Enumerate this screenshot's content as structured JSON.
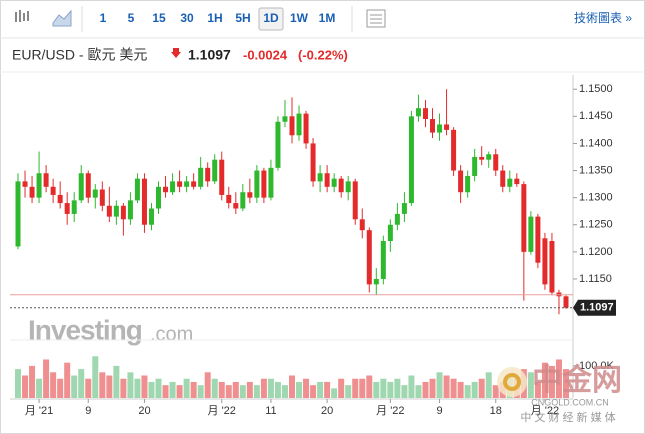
{
  "toolbar": {
    "intervals": [
      "1",
      "5",
      "15",
      "30",
      "1H",
      "5H",
      "1D",
      "1W",
      "1M"
    ],
    "selected": 6,
    "link": "技術圖表 »"
  },
  "header": {
    "symbol": "EUR/USD - 歐元 美元",
    "price": "1.1097",
    "change": "-0.0024",
    "change_pct": "(-0.22%)"
  },
  "watermarks": {
    "brand": "Investing",
    "brand_suffix": ".com",
    "cn_name": "中金网",
    "cn_domain": "CNGOLD.COM.CN",
    "cn_slogan": "中 文 财 经 新 媒 体"
  },
  "chart_data": {
    "type": "candlestick",
    "up_color": "#2eb82e",
    "down_color": "#e32b2b",
    "volume_up_color": "#9fd8b0",
    "volume_down_color": "#f08f8f",
    "categories": [
      null,
      null,
      null,
      "月 '21",
      null,
      null,
      null,
      null,
      null,
      null,
      "9",
      null,
      null,
      null,
      null,
      null,
      null,
      null,
      "20",
      null,
      null,
      null,
      null,
      null,
      null,
      null,
      null,
      null,
      null,
      "月 '22",
      null,
      null,
      null,
      null,
      null,
      null,
      "11",
      null,
      null,
      null,
      null,
      null,
      null,
      null,
      "20",
      null,
      null,
      null,
      null,
      null,
      null,
      null,
      null,
      "月 '22",
      null,
      null,
      null,
      null,
      null,
      null,
      "9",
      null,
      null,
      null,
      null,
      null,
      null,
      null,
      "18",
      null,
      null,
      null,
      null,
      null,
      null,
      "月 '22",
      null,
      null,
      null
    ],
    "open": [
      1.121,
      1.133,
      1.132,
      1.13,
      1.1345,
      1.132,
      1.1305,
      1.129,
      1.127,
      1.1295,
      1.1345,
      1.13,
      1.1315,
      1.1285,
      1.1265,
      1.1285,
      1.126,
      1.1295,
      1.1335,
      1.125,
      1.128,
      1.132,
      1.131,
      1.133,
      1.132,
      1.133,
      1.132,
      1.1355,
      1.133,
      1.137,
      1.1305,
      1.129,
      1.128,
      1.131,
      1.13,
      1.135,
      1.13,
      1.1355,
      1.144,
      1.145,
      1.1415,
      1.1455,
      1.14,
      1.133,
      1.1345,
      1.132,
      1.1335,
      1.131,
      1.133,
      1.126,
      1.124,
      1.114,
      1.115,
      1.122,
      1.125,
      1.127,
      1.129,
      1.145,
      1.1465,
      1.1445,
      1.142,
      1.1435,
      1.1425,
      1.135,
      1.131,
      1.134,
      1.1375,
      1.137,
      1.138,
      1.135,
      1.132,
      1.1335,
      1.1325,
      1.12,
      1.1265,
      1.1225,
      1.122,
      1.1125,
      1.1118
    ],
    "high": [
      1.1345,
      1.135,
      1.134,
      1.1385,
      1.136,
      1.1335,
      1.133,
      1.131,
      1.131,
      1.136,
      1.135,
      1.1325,
      1.133,
      1.132,
      1.1295,
      1.129,
      1.131,
      1.1345,
      1.1345,
      1.129,
      1.133,
      1.134,
      1.1345,
      1.135,
      1.134,
      1.1345,
      1.1375,
      1.1365,
      1.138,
      1.1385,
      1.132,
      1.131,
      1.1325,
      1.1335,
      1.136,
      1.1355,
      1.137,
      1.145,
      1.148,
      1.1485,
      1.147,
      1.146,
      1.141,
      1.136,
      1.136,
      1.1345,
      1.134,
      1.134,
      1.1335,
      1.128,
      1.1245,
      1.117,
      1.123,
      1.126,
      1.129,
      1.131,
      1.146,
      1.149,
      1.148,
      1.1465,
      1.1455,
      1.15,
      1.143,
      1.136,
      1.135,
      1.139,
      1.1395,
      1.1385,
      1.139,
      1.136,
      1.135,
      1.1345,
      1.133,
      1.1275,
      1.127,
      1.1235,
      1.1235,
      1.113,
      1.112
    ],
    "low": [
      1.1205,
      1.13,
      1.129,
      1.129,
      1.131,
      1.129,
      1.128,
      1.125,
      1.1255,
      1.129,
      1.129,
      1.128,
      1.1275,
      1.1255,
      1.125,
      1.123,
      1.125,
      1.129,
      1.1235,
      1.124,
      1.127,
      1.13,
      1.1305,
      1.131,
      1.131,
      1.1315,
      1.1315,
      1.132,
      1.1325,
      1.1295,
      1.128,
      1.127,
      1.1275,
      1.129,
      1.129,
      1.129,
      1.1295,
      1.135,
      1.143,
      1.14,
      1.1405,
      1.139,
      1.132,
      1.131,
      1.131,
      1.131,
      1.13,
      1.1295,
      1.125,
      1.1225,
      1.1125,
      1.112,
      1.114,
      1.12,
      1.124,
      1.1255,
      1.1285,
      1.144,
      1.143,
      1.141,
      1.1405,
      1.1415,
      1.134,
      1.129,
      1.13,
      1.133,
      1.136,
      1.1355,
      1.134,
      1.131,
      1.131,
      1.132,
      1.111,
      1.1195,
      1.117,
      1.113,
      1.112,
      1.1085,
      1.1095
    ],
    "close": [
      1.133,
      1.132,
      1.13,
      1.1345,
      1.132,
      1.1305,
      1.129,
      1.127,
      1.1295,
      1.1345,
      1.13,
      1.1315,
      1.1285,
      1.1265,
      1.1285,
      1.126,
      1.1295,
      1.1335,
      1.125,
      1.128,
      1.132,
      1.131,
      1.133,
      1.132,
      1.133,
      1.132,
      1.1355,
      1.133,
      1.137,
      1.1305,
      1.129,
      1.128,
      1.131,
      1.13,
      1.135,
      1.13,
      1.1355,
      1.144,
      1.145,
      1.1415,
      1.1455,
      1.14,
      1.133,
      1.1345,
      1.132,
      1.1335,
      1.131,
      1.133,
      1.126,
      1.124,
      1.114,
      1.115,
      1.122,
      1.125,
      1.127,
      1.129,
      1.145,
      1.1465,
      1.1445,
      1.142,
      1.1435,
      1.1425,
      1.135,
      1.131,
      1.134,
      1.1375,
      1.137,
      1.138,
      1.135,
      1.132,
      1.1335,
      1.1325,
      1.12,
      1.1265,
      1.118,
      1.114,
      1.1125,
      1.1118,
      1.1097
    ],
    "volume": [
      90000,
      70000,
      100000,
      60000,
      120000,
      80000,
      60000,
      110000,
      70000,
      90000,
      60000,
      130000,
      80000,
      70000,
      100000,
      60000,
      80000,
      60000,
      70000,
      50000,
      60000,
      40000,
      50000,
      40000,
      60000,
      50000,
      40000,
      80000,
      60000,
      50000,
      40000,
      50000,
      40000,
      50000,
      40000,
      60000,
      60000,
      50000,
      40000,
      70000,
      50000,
      60000,
      40000,
      50000,
      50000,
      30000,
      60000,
      40000,
      60000,
      60000,
      70000,
      50000,
      60000,
      50000,
      60000,
      40000,
      70000,
      40000,
      50000,
      60000,
      80000,
      70000,
      60000,
      50000,
      40000,
      50000,
      60000,
      80000,
      40000,
      50000,
      70000,
      60000,
      90000,
      80000,
      50000,
      110000,
      100000,
      120000,
      90000
    ],
    "ylim": [
      1.1078,
      1.1517
    ],
    "yticks": [
      {
        "value": 1.115,
        "label": "1.1150"
      },
      {
        "value": 1.12,
        "label": "1.1200"
      },
      {
        "value": 1.125,
        "label": "1.1250"
      },
      {
        "value": 1.13,
        "label": "1.1300"
      },
      {
        "value": 1.135,
        "label": "1.1350"
      },
      {
        "value": 1.14,
        "label": "1.1400"
      },
      {
        "value": 1.145,
        "label": "1.1450"
      },
      {
        "value": 1.15,
        "label": "1.1500"
      }
    ],
    "volume_ylim": [
      0,
      165000
    ],
    "volume_ticks": [
      {
        "value": 100000,
        "label": "100.0K"
      }
    ],
    "prev_close": 1.1121,
    "last_price": 1.1097
  }
}
